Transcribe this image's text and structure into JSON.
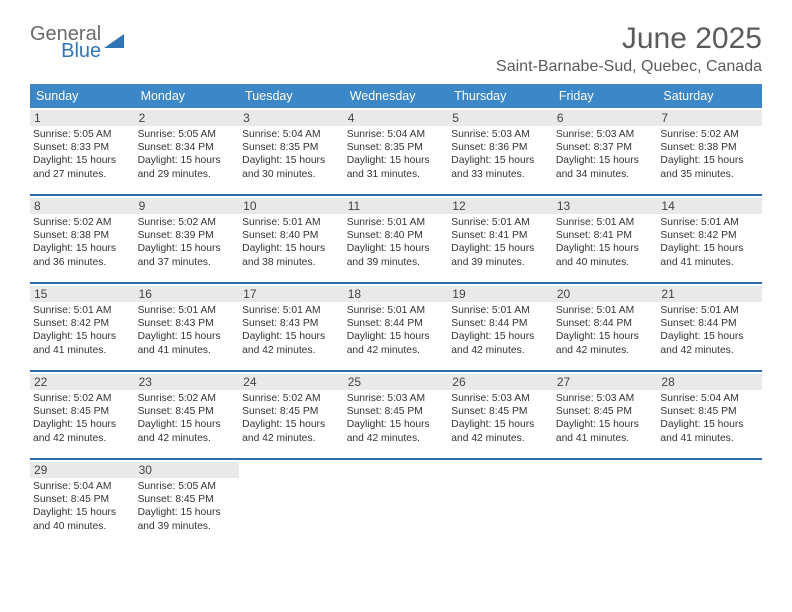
{
  "logo": {
    "line1": "General",
    "line2": "Blue"
  },
  "title": "June 2025",
  "location": "Saint-Barnabe-Sud, Quebec, Canada",
  "colors": {
    "header_bg": "#3b87c8",
    "header_text": "#ffffff",
    "row_border": "#2e6da8",
    "daynum_bg": "#e9e9e9",
    "text": "#333333",
    "title_text": "#5b5b5b",
    "logo_gray": "#6a6a6a",
    "logo_blue": "#2e75b6"
  },
  "day_names": [
    "Sunday",
    "Monday",
    "Tuesday",
    "Wednesday",
    "Thursday",
    "Friday",
    "Saturday"
  ],
  "weeks": [
    [
      {
        "n": "1",
        "sunrise": "5:05 AM",
        "sunset": "8:33 PM",
        "day_h": "15",
        "day_m": "27"
      },
      {
        "n": "2",
        "sunrise": "5:05 AM",
        "sunset": "8:34 PM",
        "day_h": "15",
        "day_m": "29"
      },
      {
        "n": "3",
        "sunrise": "5:04 AM",
        "sunset": "8:35 PM",
        "day_h": "15",
        "day_m": "30"
      },
      {
        "n": "4",
        "sunrise": "5:04 AM",
        "sunset": "8:35 PM",
        "day_h": "15",
        "day_m": "31"
      },
      {
        "n": "5",
        "sunrise": "5:03 AM",
        "sunset": "8:36 PM",
        "day_h": "15",
        "day_m": "33"
      },
      {
        "n": "6",
        "sunrise": "5:03 AM",
        "sunset": "8:37 PM",
        "day_h": "15",
        "day_m": "34"
      },
      {
        "n": "7",
        "sunrise": "5:02 AM",
        "sunset": "8:38 PM",
        "day_h": "15",
        "day_m": "35"
      }
    ],
    [
      {
        "n": "8",
        "sunrise": "5:02 AM",
        "sunset": "8:38 PM",
        "day_h": "15",
        "day_m": "36"
      },
      {
        "n": "9",
        "sunrise": "5:02 AM",
        "sunset": "8:39 PM",
        "day_h": "15",
        "day_m": "37"
      },
      {
        "n": "10",
        "sunrise": "5:01 AM",
        "sunset": "8:40 PM",
        "day_h": "15",
        "day_m": "38"
      },
      {
        "n": "11",
        "sunrise": "5:01 AM",
        "sunset": "8:40 PM",
        "day_h": "15",
        "day_m": "39"
      },
      {
        "n": "12",
        "sunrise": "5:01 AM",
        "sunset": "8:41 PM",
        "day_h": "15",
        "day_m": "39"
      },
      {
        "n": "13",
        "sunrise": "5:01 AM",
        "sunset": "8:41 PM",
        "day_h": "15",
        "day_m": "40"
      },
      {
        "n": "14",
        "sunrise": "5:01 AM",
        "sunset": "8:42 PM",
        "day_h": "15",
        "day_m": "41"
      }
    ],
    [
      {
        "n": "15",
        "sunrise": "5:01 AM",
        "sunset": "8:42 PM",
        "day_h": "15",
        "day_m": "41"
      },
      {
        "n": "16",
        "sunrise": "5:01 AM",
        "sunset": "8:43 PM",
        "day_h": "15",
        "day_m": "41"
      },
      {
        "n": "17",
        "sunrise": "5:01 AM",
        "sunset": "8:43 PM",
        "day_h": "15",
        "day_m": "42"
      },
      {
        "n": "18",
        "sunrise": "5:01 AM",
        "sunset": "8:44 PM",
        "day_h": "15",
        "day_m": "42"
      },
      {
        "n": "19",
        "sunrise": "5:01 AM",
        "sunset": "8:44 PM",
        "day_h": "15",
        "day_m": "42"
      },
      {
        "n": "20",
        "sunrise": "5:01 AM",
        "sunset": "8:44 PM",
        "day_h": "15",
        "day_m": "42"
      },
      {
        "n": "21",
        "sunrise": "5:01 AM",
        "sunset": "8:44 PM",
        "day_h": "15",
        "day_m": "42"
      }
    ],
    [
      {
        "n": "22",
        "sunrise": "5:02 AM",
        "sunset": "8:45 PM",
        "day_h": "15",
        "day_m": "42"
      },
      {
        "n": "23",
        "sunrise": "5:02 AM",
        "sunset": "8:45 PM",
        "day_h": "15",
        "day_m": "42"
      },
      {
        "n": "24",
        "sunrise": "5:02 AM",
        "sunset": "8:45 PM",
        "day_h": "15",
        "day_m": "42"
      },
      {
        "n": "25",
        "sunrise": "5:03 AM",
        "sunset": "8:45 PM",
        "day_h": "15",
        "day_m": "42"
      },
      {
        "n": "26",
        "sunrise": "5:03 AM",
        "sunset": "8:45 PM",
        "day_h": "15",
        "day_m": "42"
      },
      {
        "n": "27",
        "sunrise": "5:03 AM",
        "sunset": "8:45 PM",
        "day_h": "15",
        "day_m": "41"
      },
      {
        "n": "28",
        "sunrise": "5:04 AM",
        "sunset": "8:45 PM",
        "day_h": "15",
        "day_m": "41"
      }
    ],
    [
      {
        "n": "29",
        "sunrise": "5:04 AM",
        "sunset": "8:45 PM",
        "day_h": "15",
        "day_m": "40"
      },
      {
        "n": "30",
        "sunrise": "5:05 AM",
        "sunset": "8:45 PM",
        "day_h": "15",
        "day_m": "39"
      },
      null,
      null,
      null,
      null,
      null
    ]
  ],
  "labels": {
    "sunrise_prefix": "Sunrise: ",
    "sunset_prefix": "Sunset: ",
    "daylight_prefix": "Daylight: ",
    "hours_word": " hours",
    "and_word": "and ",
    "minutes_word": " minutes."
  }
}
